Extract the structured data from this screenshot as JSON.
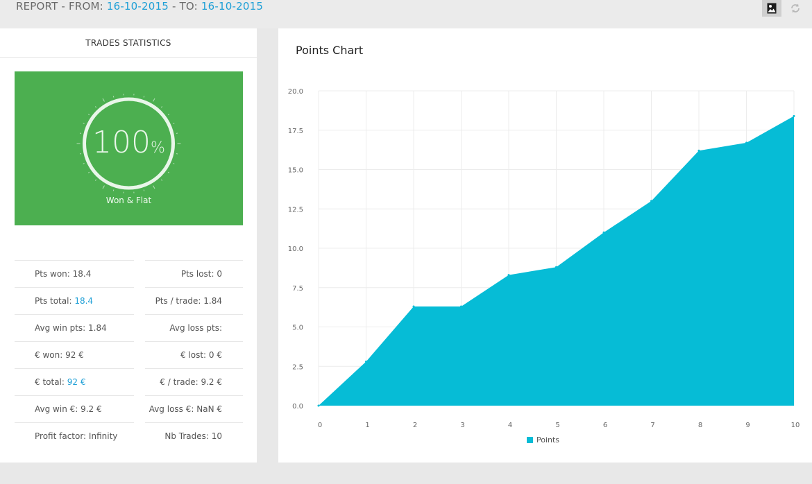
{
  "header": {
    "report_prefix": "REPORT - FROM: ",
    "from_date": "16-10-2015",
    "to_sep": " - TO: ",
    "to_date": "16-10-2015",
    "icons": [
      "image-icon",
      "refresh-icon"
    ]
  },
  "stats_panel": {
    "title": "TRADES STATISTICS",
    "gauge": {
      "value": "100",
      "unit": "%",
      "label": "Won & Flat",
      "fraction": 1.0
    },
    "colors": {
      "green": "#4caf50",
      "highlight": "#1e9fd6"
    },
    "left": [
      {
        "label": "Pts won: ",
        "value": "18.4",
        "hl": false
      },
      {
        "label": "Pts total: ",
        "value": "18.4",
        "hl": true
      },
      {
        "label": "Avg win pts: ",
        "value": "1.84",
        "hl": false
      },
      {
        "label": "€ won: ",
        "value": "92 €",
        "hl": false
      },
      {
        "label": "€ total: ",
        "value": "92 €",
        "hl": true
      },
      {
        "label": "Avg win €: ",
        "value": "9.2 €",
        "hl": false
      },
      {
        "label": "Profit factor: ",
        "value": "Infinity",
        "hl": false
      }
    ],
    "right": [
      {
        "label": "Pts lost: ",
        "value": "0"
      },
      {
        "label": "Pts / trade: ",
        "value": "1.84"
      },
      {
        "label": "Avg loss pts: ",
        "value": ""
      },
      {
        "label": "€ lost: ",
        "value": "0 €"
      },
      {
        "label": "€ / trade: ",
        "value": "9.2 €"
      },
      {
        "label": "Avg loss €: ",
        "value": "NaN €"
      },
      {
        "label": "Nb Trades: ",
        "value": "10"
      }
    ]
  },
  "chart_panel": {
    "title": "Points Chart"
  },
  "chart_data": {
    "type": "area",
    "title": "Points Chart",
    "x": [
      0,
      1,
      2,
      3,
      4,
      5,
      6,
      7,
      8,
      9,
      10
    ],
    "series": [
      {
        "name": "Points",
        "values": [
          0,
          2.8,
          6.3,
          6.3,
          8.3,
          8.8,
          11.0,
          13.0,
          16.2,
          16.7,
          18.4
        ],
        "color": "#06bcd6"
      }
    ],
    "ylim": [
      0,
      20
    ],
    "yticks": [
      "0.0",
      "2.5",
      "5.0",
      "7.5",
      "10.0",
      "12.5",
      "15.0",
      "17.5",
      "20.0"
    ],
    "xticks": [
      "0",
      "1",
      "2",
      "3",
      "4",
      "5",
      "6",
      "7",
      "8",
      "9",
      "10"
    ],
    "grid": true,
    "legend": "bottom-center"
  }
}
